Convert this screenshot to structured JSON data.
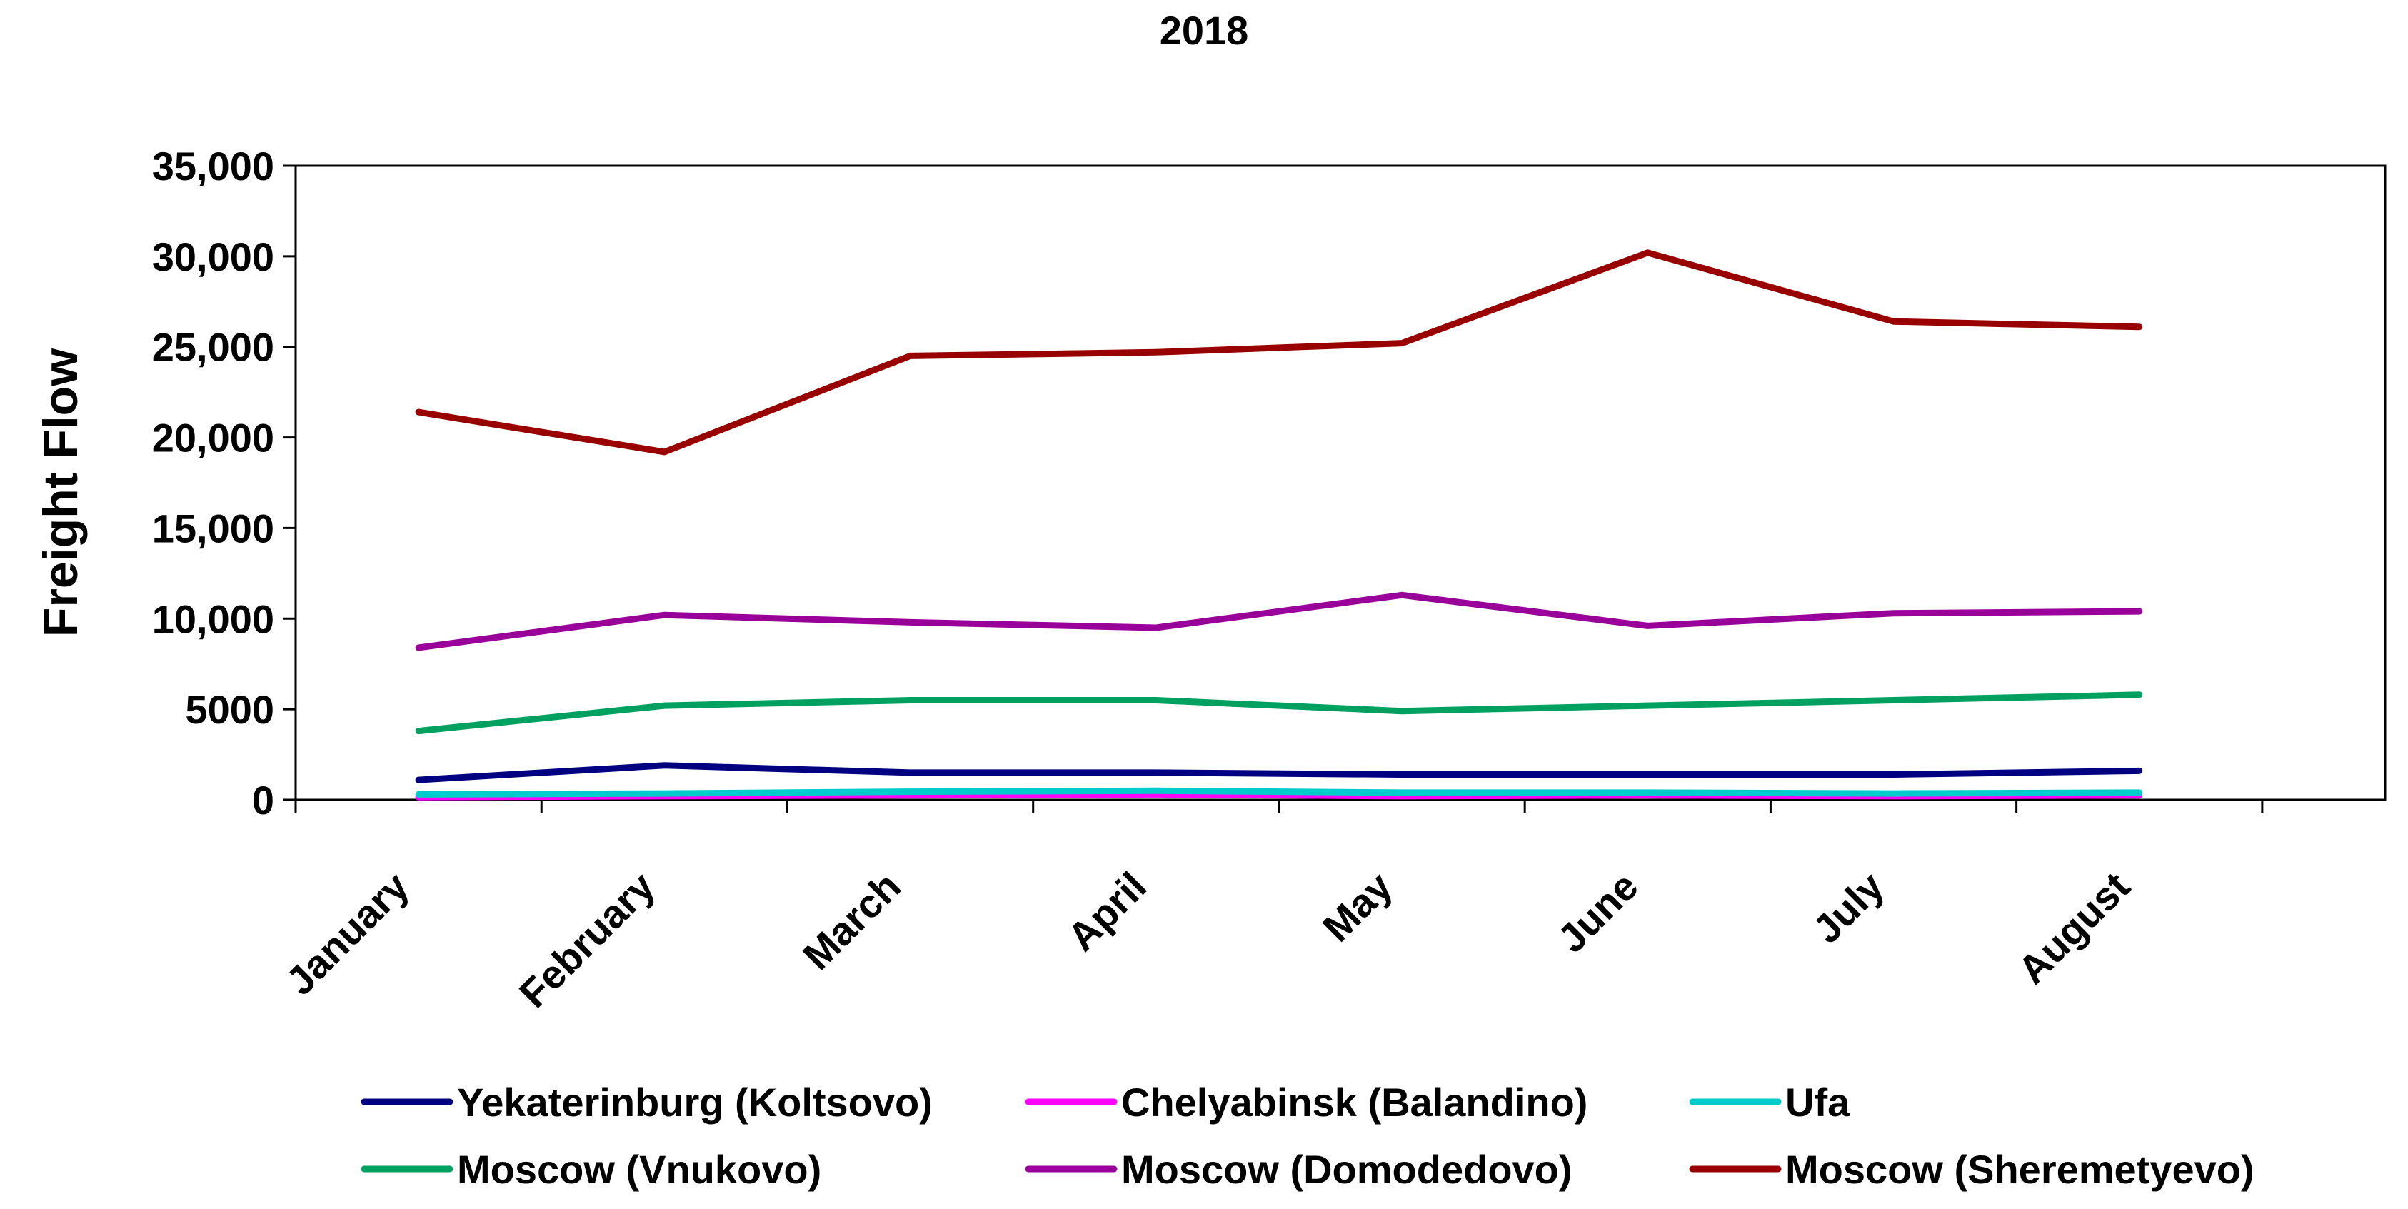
{
  "chart_data": {
    "type": "line",
    "title": "2018",
    "xlabel": "",
    "ylabel": "Freight Flow",
    "ylim": [
      0,
      35000
    ],
    "yticks": [
      0,
      5000,
      10000,
      15000,
      20000,
      25000,
      30000,
      35000
    ],
    "ytick_labels": [
      "0",
      "5000",
      "10,000",
      "15,000",
      "20,000",
      "25,000",
      "30,000",
      "35,000"
    ],
    "categories": [
      "January",
      "February",
      "March",
      "April",
      "May",
      "June",
      "July",
      "August"
    ],
    "grid": false,
    "legend_position": "bottom",
    "series": [
      {
        "name": "Yekaterinburg (Koltsovo)",
        "color": "#000080",
        "values": [
          1100,
          1900,
          1500,
          1500,
          1400,
          1400,
          1400,
          1600
        ]
      },
      {
        "name": "Chelyabinsk (Balandino)",
        "color": "#FF00FF",
        "values": [
          150,
          200,
          250,
          300,
          200,
          250,
          200,
          250
        ]
      },
      {
        "name": "Ufa",
        "color": "#00CCCC",
        "values": [
          300,
          350,
          450,
          500,
          400,
          400,
          350,
          400
        ]
      },
      {
        "name": "Moscow (Vnukovo)",
        "color": "#00A060",
        "values": [
          3800,
          5200,
          5500,
          5500,
          4900,
          5200,
          5500,
          5800
        ]
      },
      {
        "name": "Moscow (Domodedovo)",
        "color": "#990099",
        "values": [
          8400,
          10200,
          9800,
          9500,
          11300,
          9600,
          10300,
          10400
        ]
      },
      {
        "name": "Moscow (Sheremetyevo)",
        "color": "#990000",
        "values": [
          21400,
          19200,
          24500,
          24700,
          25200,
          30200,
          26400,
          26100
        ]
      }
    ]
  }
}
